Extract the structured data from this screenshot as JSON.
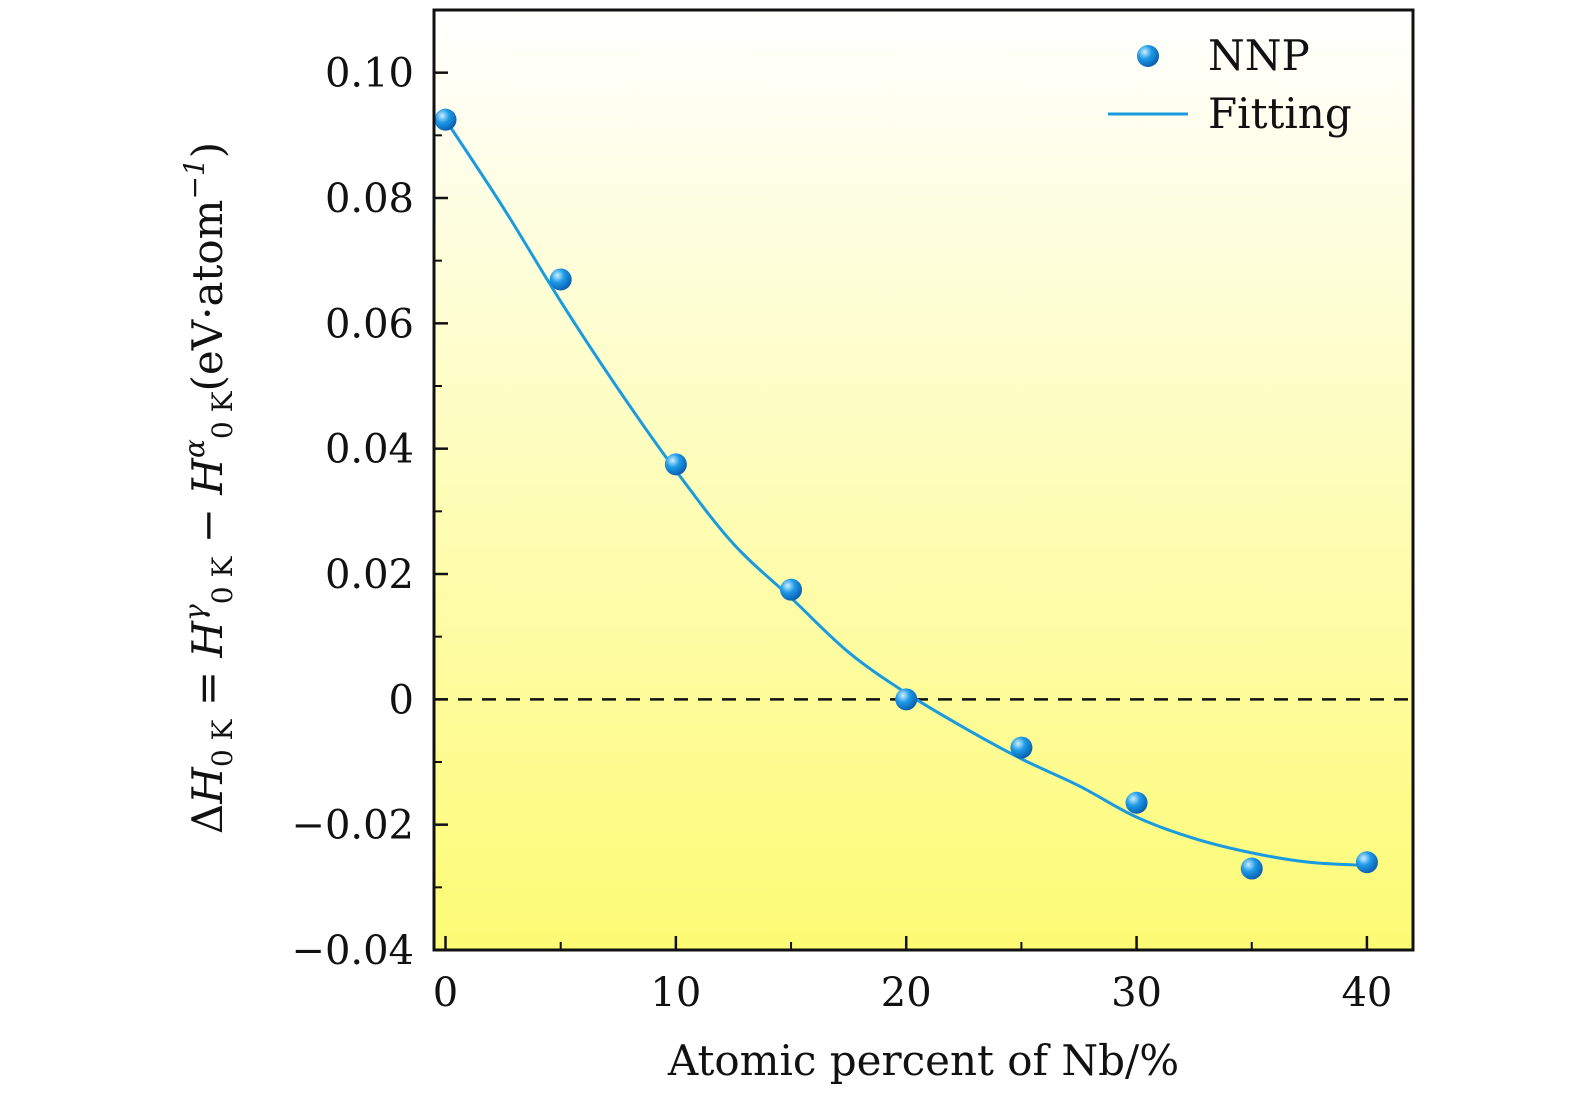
{
  "chart_data": {
    "type": "scatter",
    "title": "",
    "xlabel": "Atomic percent of Nb/%",
    "ylabel": {
      "parts": [
        {
          "text": "Δ",
          "style": "normal"
        },
        {
          "text": "H",
          "style": "italic"
        },
        {
          "text": "0 K",
          "style": "sub"
        },
        {
          "text": " = ",
          "style": "normal"
        },
        {
          "text": "H",
          "style": "italic"
        },
        {
          "text": "γ",
          "style": "sup"
        },
        {
          "text": "0 K",
          "style": "sub"
        },
        {
          "text": " − ",
          "style": "normal"
        },
        {
          "text": "H",
          "style": "italic"
        },
        {
          "text": "α",
          "style": "sup"
        },
        {
          "text": "0 K",
          "style": "sub"
        },
        {
          "text": "(eV·atom",
          "style": "normal"
        },
        {
          "text": "−1",
          "style": "sup"
        },
        {
          "text": ")",
          "style": "normal"
        }
      ]
    },
    "xlim": [
      -0.5,
      42
    ],
    "ylim": [
      -0.04,
      0.11
    ],
    "xticks": [
      0,
      10,
      20,
      30,
      40
    ],
    "xtick_labels": [
      "0",
      "10",
      "20",
      "30",
      "40"
    ],
    "yticks": [
      -0.04,
      -0.02,
      0,
      0.02,
      0.04,
      0.06,
      0.08,
      0.1
    ],
    "ytick_labels": [
      "−0.04",
      "−0.02",
      "0",
      "0.02",
      "0.04",
      "0.06",
      "0.08",
      "0.10"
    ],
    "grid": false,
    "reference_line": {
      "y": 0,
      "style": "dashed"
    },
    "series": [
      {
        "name": "NNP",
        "kind": "scatter",
        "x": [
          0,
          5,
          10,
          15,
          20,
          25,
          30,
          35,
          40
        ],
        "y": [
          0.0925,
          0.067,
          0.0375,
          0.0175,
          0.0,
          -0.0077,
          -0.0165,
          -0.027,
          -0.026
        ]
      },
      {
        "name": "Fitting",
        "kind": "line",
        "x": [
          0,
          2.5,
          5,
          7.5,
          10,
          12.5,
          15,
          17.5,
          20,
          22.5,
          25,
          27.5,
          30,
          32.5,
          35,
          37.5,
          40
        ],
        "y": [
          0.0925,
          0.0785,
          0.0635,
          0.0495,
          0.0365,
          0.0248,
          0.0162,
          0.0075,
          0.001,
          -0.0045,
          -0.0095,
          -0.0138,
          -0.0188,
          -0.0222,
          -0.0245,
          -0.026,
          -0.0265
        ]
      }
    ],
    "legend": {
      "position": "top-right",
      "entries": [
        "NNP",
        "Fitting"
      ]
    },
    "colors": {
      "marker": "#1e9be8",
      "marker_highlight": "#cfeeff",
      "line": "#1a9be0",
      "background_top": "#ffffff",
      "background_bottom": "#fdfb74",
      "axis": "#111111"
    }
  }
}
